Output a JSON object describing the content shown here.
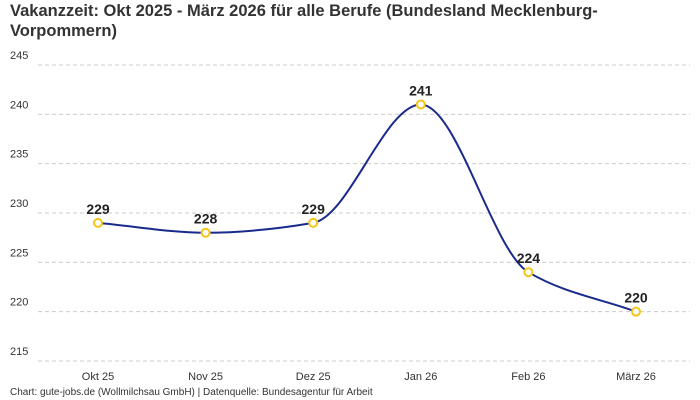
{
  "chart_data": {
    "type": "line",
    "title": "Vakanzzeit: Okt 2025 - März 2026 für alle Berufe (Bundesland Mecklenburg-Vorpommern)",
    "categories": [
      "Okt 25",
      "Nov 25",
      "Dez 25",
      "Jan 26",
      "Feb 26",
      "März 26"
    ],
    "values": [
      229,
      228,
      229,
      241,
      224,
      220
    ],
    "ylim": [
      215,
      245
    ],
    "yticks": [
      215,
      220,
      225,
      230,
      235,
      240,
      245
    ],
    "xlabel": "",
    "ylabel": "",
    "grid": true,
    "line_color": "#1a2a8c",
    "marker_color": "#f5c518",
    "smooth": true,
    "footer": "Chart: gute-jobs.de (Wollmilchsau GmbH) | Datenquelle: Bundesagentur für Arbeit"
  }
}
